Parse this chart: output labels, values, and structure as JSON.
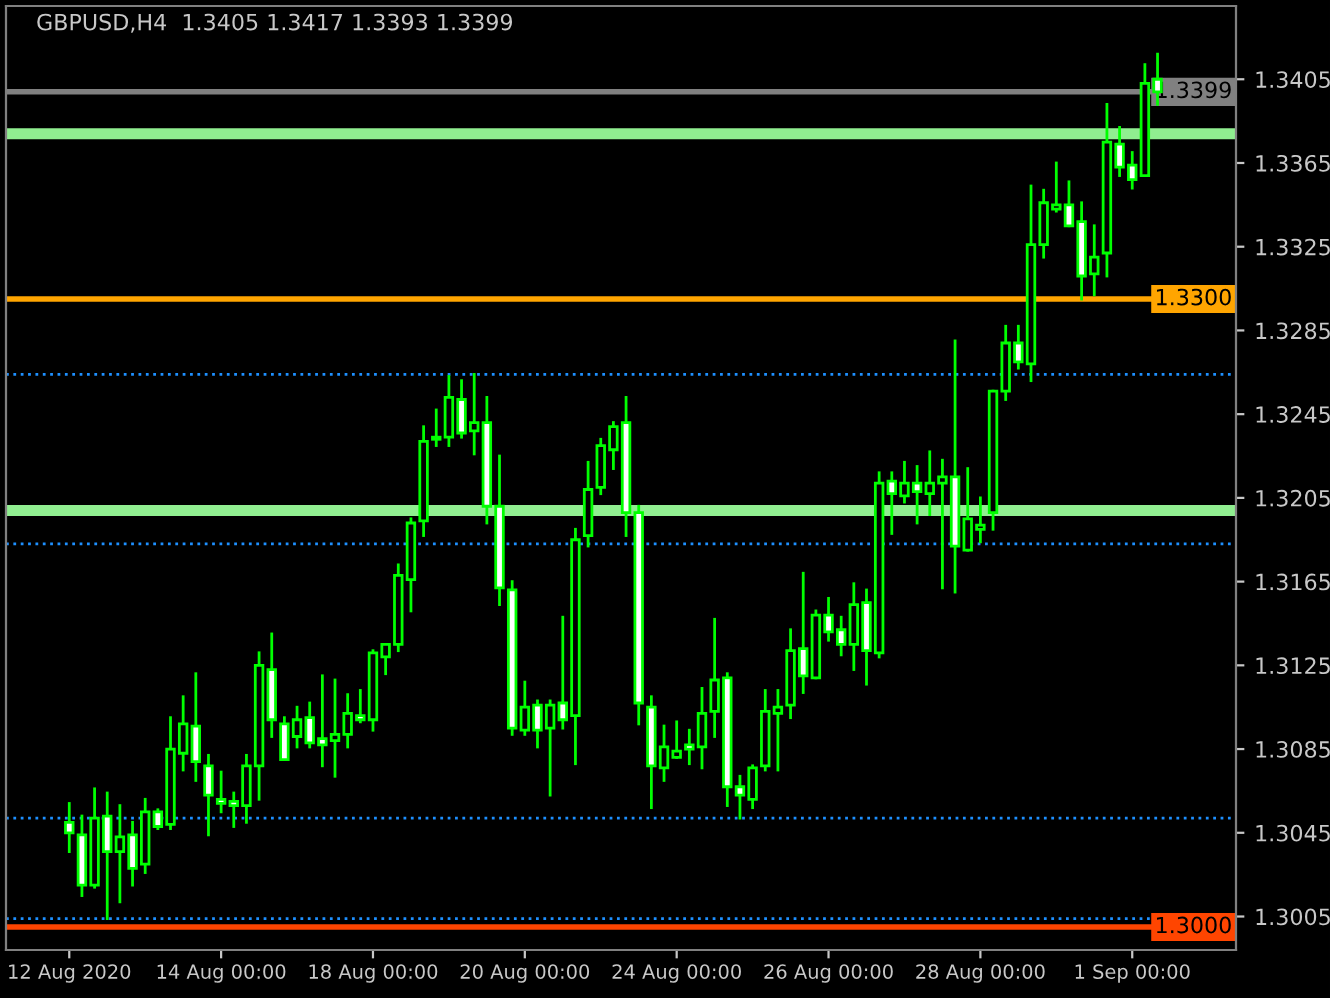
{
  "chart_data": {
    "type": "candlestick",
    "title": "GBPUSD,H4  1.3405 1.3417 1.3393 1.3399",
    "color": "#00ff00",
    "categories": [
      "12 Aug 2020",
      null,
      null,
      null,
      null,
      null,
      null,
      null,
      null,
      null,
      null,
      null,
      "14 Aug 00:00",
      null,
      null,
      null,
      null,
      null,
      null,
      null,
      null,
      null,
      null,
      null,
      "18 Aug 00:00",
      null,
      null,
      null,
      null,
      null,
      null,
      null,
      null,
      null,
      null,
      null,
      "20 Aug 00:00",
      null,
      null,
      null,
      null,
      null,
      null,
      null,
      null,
      null,
      null,
      null,
      "24 Aug 00:00",
      null,
      null,
      null,
      null,
      null,
      null,
      null,
      null,
      null,
      null,
      null,
      "26 Aug 00:00",
      null,
      null,
      null,
      null,
      null,
      null,
      null,
      null,
      null,
      null,
      null,
      "28 Aug 00:00",
      null,
      null,
      null,
      null,
      null,
      null,
      null,
      null,
      null,
      null,
      null,
      "1 Sep 00:00",
      null,
      null
    ],
    "ohlc": [
      [
        1.305,
        1.3059,
        1.3036,
        1.3045
      ],
      [
        1.3044,
        1.3053,
        1.3015,
        1.302
      ],
      [
        1.302,
        1.3066,
        1.3019,
        1.3052
      ],
      [
        1.3053,
        1.3064,
        1.3004,
        1.3036
      ],
      [
        1.3036,
        1.3058,
        1.3012,
        1.3043
      ],
      [
        1.3044,
        1.305,
        1.302,
        1.3028
      ],
      [
        1.303,
        1.3061,
        1.3026,
        1.3055
      ],
      [
        1.3055,
        1.3056,
        1.3047,
        1.3048
      ],
      [
        1.3049,
        1.31,
        1.3047,
        1.3085
      ],
      [
        1.3083,
        1.311,
        1.3075,
        1.3097
      ],
      [
        1.3096,
        1.3121,
        1.307,
        1.3079
      ],
      [
        1.3077,
        1.3082,
        1.3044,
        1.3063
      ],
      [
        1.3061,
        1.3074,
        1.3055,
        1.3059
      ],
      [
        1.306,
        1.3064,
        1.3048,
        1.3058
      ],
      [
        1.3058,
        1.3082,
        1.305,
        1.3077
      ],
      [
        1.3077,
        1.3131,
        1.3061,
        1.3125
      ],
      [
        1.3123,
        1.314,
        1.3091,
        1.3099
      ],
      [
        1.3097,
        1.31,
        1.308,
        1.308
      ],
      [
        1.3091,
        1.3105,
        1.3086,
        1.3099
      ],
      [
        1.31,
        1.3107,
        1.3086,
        1.3088
      ],
      [
        1.309,
        1.312,
        1.3077,
        1.3087
      ],
      [
        1.3089,
        1.3118,
        1.3072,
        1.3092
      ],
      [
        1.3092,
        1.3111,
        1.3086,
        1.3102
      ],
      [
        1.3101,
        1.3113,
        1.3098,
        1.3099
      ],
      [
        1.3099,
        1.3132,
        1.3094,
        1.3131
      ],
      [
        1.3129,
        1.3135,
        1.3121,
        1.3135
      ],
      [
        1.3135,
        1.3173,
        1.3132,
        1.3168
      ],
      [
        1.3166,
        1.3195,
        1.3151,
        1.3193
      ],
      [
        1.3194,
        1.3239,
        1.3187,
        1.3232
      ],
      [
        1.3233,
        1.3247,
        1.323,
        1.3234
      ],
      [
        1.3234,
        1.3263,
        1.323,
        1.3253
      ],
      [
        1.3252,
        1.3261,
        1.3234,
        1.3236
      ],
      [
        1.3237,
        1.3264,
        1.3226,
        1.3241
      ],
      [
        1.3241,
        1.3253,
        1.3193,
        1.3201
      ],
      [
        1.3201,
        1.3225,
        1.3154,
        1.3162
      ],
      [
        1.3161,
        1.3165,
        1.3092,
        1.3095
      ],
      [
        1.3094,
        1.3117,
        1.3092,
        1.3105
      ],
      [
        1.3106,
        1.3108,
        1.3086,
        1.3094
      ],
      [
        1.3095,
        1.3108,
        1.3063,
        1.3106
      ],
      [
        1.3107,
        1.3148,
        1.3095,
        1.3099
      ],
      [
        1.3101,
        1.319,
        1.3078,
        1.3185
      ],
      [
        1.3187,
        1.3222,
        1.3182,
        1.3209
      ],
      [
        1.321,
        1.3233,
        1.3207,
        1.323
      ],
      [
        1.3228,
        1.3241,
        1.3219,
        1.3239
      ],
      [
        1.3241,
        1.3253,
        1.3187,
        1.3198
      ],
      [
        1.3198,
        1.3201,
        1.3097,
        1.3107
      ],
      [
        1.3105,
        1.311,
        1.3057,
        1.3077
      ],
      [
        1.3076,
        1.3096,
        1.307,
        1.3086
      ],
      [
        1.3081,
        1.3098,
        1.3081,
        1.3084
      ],
      [
        1.3087,
        1.3094,
        1.3078,
        1.3085
      ],
      [
        1.3086,
        1.3114,
        1.3076,
        1.3102
      ],
      [
        1.3103,
        1.3147,
        1.3091,
        1.3118
      ],
      [
        1.3119,
        1.3121,
        1.3058,
        1.3067
      ],
      [
        1.3067,
        1.3072,
        1.3052,
        1.3063
      ],
      [
        1.3061,
        1.3077,
        1.3057,
        1.3076
      ],
      [
        1.3077,
        1.3113,
        1.3075,
        1.3103
      ],
      [
        1.3102,
        1.3113,
        1.3075,
        1.3105
      ],
      [
        1.3106,
        1.3142,
        1.31,
        1.3132
      ],
      [
        1.3133,
        1.3169,
        1.3112,
        1.312
      ],
      [
        1.3119,
        1.3151,
        1.3119,
        1.3149
      ],
      [
        1.3149,
        1.3157,
        1.3137,
        1.3141
      ],
      [
        1.3142,
        1.3148,
        1.313,
        1.3135
      ],
      [
        1.3135,
        1.3164,
        1.3123,
        1.3154
      ],
      [
        1.3155,
        1.3161,
        1.3116,
        1.3132
      ],
      [
        1.3131,
        1.3217,
        1.3129,
        1.3212
      ],
      [
        1.3213,
        1.3217,
        1.3188,
        1.3207
      ],
      [
        1.3206,
        1.3222,
        1.3203,
        1.3212
      ],
      [
        1.3212,
        1.322,
        1.3193,
        1.3208
      ],
      [
        1.3207,
        1.3227,
        1.3197,
        1.3212
      ],
      [
        1.3212,
        1.3223,
        1.3162,
        1.3215
      ],
      [
        1.3215,
        1.328,
        1.316,
        1.3182
      ],
      [
        1.318,
        1.3219,
        1.318,
        1.3195
      ],
      [
        1.319,
        1.3205,
        1.3184,
        1.3192
      ],
      [
        1.3198,
        1.3256,
        1.319,
        1.3256
      ],
      [
        1.3256,
        1.3287,
        1.3252,
        1.3279
      ],
      [
        1.3279,
        1.3287,
        1.3267,
        1.327
      ],
      [
        1.3269,
        1.3354,
        1.3261,
        1.3326
      ],
      [
        1.3326,
        1.3352,
        1.332,
        1.3346
      ],
      [
        1.3343,
        1.3365,
        1.3342,
        1.3345
      ],
      [
        1.3345,
        1.3356,
        1.3335,
        1.3335
      ],
      [
        1.3337,
        1.3346,
        1.33,
        1.3311
      ],
      [
        1.3312,
        1.3335,
        1.3302,
        1.332
      ],
      [
        1.3322,
        1.3393,
        1.3311,
        1.3375
      ],
      [
        1.3374,
        1.3382,
        1.3359,
        1.3363
      ],
      [
        1.3364,
        1.337,
        1.3353,
        1.3357
      ],
      [
        1.3359,
        1.3412,
        1.3359,
        1.3403
      ],
      [
        1.3405,
        1.3417,
        1.3393,
        1.3399
      ]
    ],
    "ylim": [
      1.2989,
      1.344
    ],
    "yticks": [
      1.3005,
      1.3045,
      1.3085,
      1.3125,
      1.3165,
      1.3205,
      1.3245,
      1.3285,
      1.3325,
      1.3365,
      1.3405
    ],
    "ref_lines": [
      {
        "axis": "y",
        "value": 1.3379,
        "color": "#90ee90",
        "line_style": "solid"
      },
      {
        "axis": "y",
        "value": 1.3199,
        "color": "#90ee90",
        "line_style": "solid"
      },
      {
        "axis": "y",
        "value": 1.33,
        "label": "1.3300",
        "color": "#ffa500",
        "line_style": "solid"
      },
      {
        "axis": "y",
        "value": 1.3,
        "label": "1.3000",
        "color": "#ff4500",
        "line_style": "solid"
      },
      {
        "axis": "y",
        "value": 1.3399,
        "label": "1.3399",
        "color": "#808080",
        "line_style": "solid"
      },
      {
        "axis": "y",
        "value": 1.3264,
        "color": "#1e90ff",
        "line_style": "dotted"
      },
      {
        "axis": "y",
        "value": 1.3183,
        "color": "#1e90ff",
        "line_style": "dotted"
      },
      {
        "axis": "y",
        "value": 1.3052,
        "color": "#1e90ff",
        "line_style": "dotted"
      },
      {
        "axis": "y",
        "value": 1.3004,
        "color": "#1e90ff",
        "line_style": "dotted"
      }
    ]
  }
}
